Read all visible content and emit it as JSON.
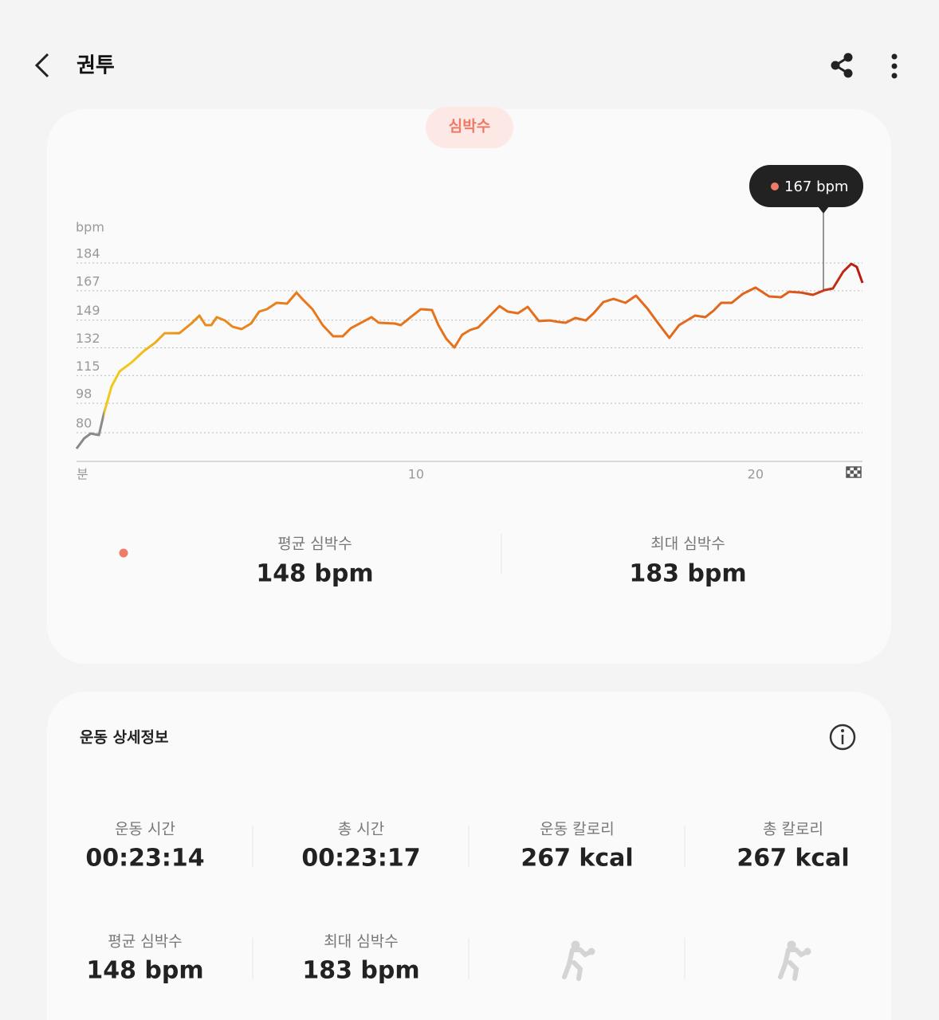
{
  "header": {
    "title": "권투"
  },
  "tab": "심박수",
  "chart_data": {
    "type": "line",
    "ylabel": "bpm",
    "xlabel": "분",
    "x": [
      0,
      0.23,
      0.42,
      0.66,
      0.8,
      1.03,
      1.27,
      1.62,
      1.97,
      2.32,
      2.6,
      3.03,
      3.38,
      3.62,
      3.8,
      3.97,
      4.13,
      4.37,
      4.6,
      4.86,
      5.14,
      5.38,
      5.61,
      5.89,
      6.2,
      6.48,
      6.67,
      6.95,
      7.25,
      7.56,
      7.84,
      8.08,
      8.43,
      8.69,
      8.9,
      9.37,
      9.55,
      9.84,
      10.14,
      10.47,
      10.66,
      10.89,
      11.13,
      11.36,
      11.6,
      11.83,
      12.18,
      12.46,
      12.7,
      13,
      13.29,
      13.62,
      13.94,
      14.18,
      14.41,
      14.69,
      15,
      15.23,
      15.52,
      15.82,
      16.17,
      16.48,
      16.81,
      17.12,
      17.46,
      17.75,
      17.98,
      18.22,
      18.52,
      18.76,
      18.99,
      19.3,
      19.62,
      20,
      20.4,
      20.75,
      20.99,
      21.34,
      21.69,
      22.04,
      22.28,
      22.58,
      22.82,
      22.98,
      23.15
    ],
    "series": [
      {
        "color": "#e8711c",
        "values": [
          70.2,
          76.6,
          79.5,
          78.5,
          91.2,
          108.3,
          117.6,
          123,
          129.8,
          135.2,
          141,
          141,
          146.9,
          151.8,
          145.9,
          145.9,
          150.8,
          148.8,
          144.9,
          143.5,
          146.9,
          154.2,
          155.7,
          159.6,
          159.1,
          165.9,
          161.5,
          155.7,
          145.9,
          139.1,
          139.1,
          144,
          147.9,
          150.8,
          147.4,
          146.9,
          145.9,
          150.8,
          155.7,
          155.2,
          145.9,
          137.6,
          132.2,
          140,
          143,
          144.5,
          151.8,
          157.6,
          154.2,
          153.2,
          157.1,
          148.4,
          148.8,
          147.9,
          147.4,
          150.3,
          148.8,
          153.2,
          160.1,
          162,
          159.6,
          164,
          156.2,
          147.4,
          138.1,
          145.9,
          148.8,
          151.8,
          150.8,
          154.7,
          159.6,
          159.6,
          165,
          168.9,
          163.5,
          163,
          166.4,
          165.9,
          164.5,
          167.4,
          168.4,
          178.6,
          183.5,
          181.6,
          171.8
        ]
      }
    ],
    "xlim": [
      0,
      23.15
    ],
    "xticks": [
      10,
      20
    ],
    "ylim": [
      62.4,
      188.9
    ],
    "yticks": [
      80,
      98,
      115,
      132,
      149,
      167,
      184
    ],
    "grid": true,
    "annotation": "167 bpm"
  },
  "summary": [
    {
      "label": "평균 심박수",
      "value": "148 bpm"
    },
    {
      "label": "최대 심박수",
      "value": "183 bpm"
    }
  ],
  "details": {
    "title": "운동 상세정보",
    "items": [
      {
        "label": "운동 시간",
        "value": "00:23:14"
      },
      {
        "label": "총 시간",
        "value": "00:23:17"
      },
      {
        "label": "운동 칼로리",
        "value": "267 kcal"
      },
      {
        "label": "총 칼로리",
        "value": "267 kcal"
      },
      {
        "label": "평균 심박수",
        "value": "148 bpm"
      },
      {
        "label": "최대 심박수",
        "value": "183 bpm"
      }
    ]
  }
}
